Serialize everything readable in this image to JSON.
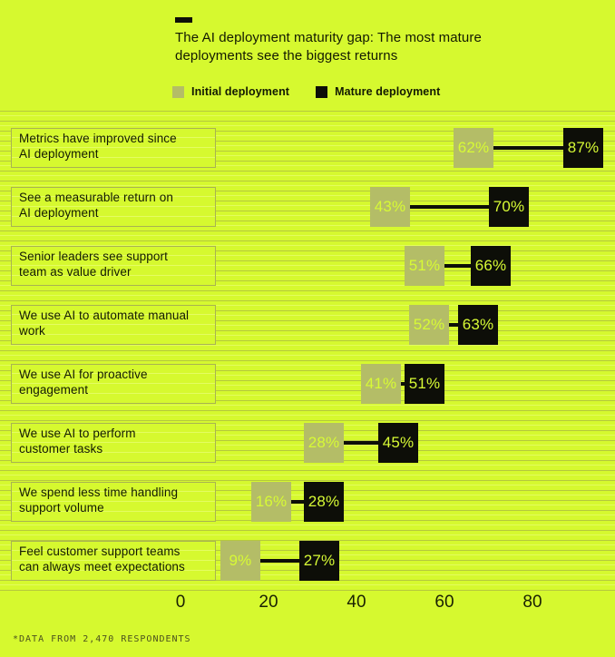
{
  "header": {
    "title": "The AI deployment maturity gap: The most mature\ndeployments see the biggest returns"
  },
  "legend": [
    {
      "label": "Initial deployment",
      "color": "#b4bd67"
    },
    {
      "label": "Mature deployment",
      "color": "#0d0e08"
    }
  ],
  "chart_data": {
    "type": "dumbbell",
    "title": "The AI deployment maturity gap: The most mature deployments see the biggest returns",
    "categories": [
      "Metrics have improved since\nAI deployment",
      "See a measurable return on\nAI deployment",
      "Senior leaders see support\nteam as value driver",
      "We use AI to automate manual\nwork",
      "We use AI for proactive\nengagement",
      "We use AI to perform\ncustomer tasks",
      "We spend less time handling\nsupport volume",
      "Feel customer support teams\ncan always meet expectations"
    ],
    "series": [
      {
        "name": "Initial deployment",
        "values": [
          62,
          43,
          51,
          52,
          41,
          28,
          16,
          9
        ],
        "labels": [
          "62%",
          "43%",
          "51%",
          "52%",
          "41%",
          "28%",
          "16%",
          "9%"
        ]
      },
      {
        "name": "Mature deployment",
        "values": [
          87,
          70,
          66,
          63,
          51,
          45,
          28,
          27
        ],
        "labels": [
          "87%",
          "70%",
          "66%",
          "63%",
          "51%",
          "45%",
          "28%",
          "27%"
        ]
      }
    ],
    "x_ticks": [
      0,
      20,
      40,
      60,
      80
    ],
    "xlim": [
      0,
      98
    ],
    "grid": "horizontal-ruled-lines",
    "legend_position": "top",
    "colors": {
      "background": "#d6f92f",
      "grid_line": "#b5c83e",
      "initial": "#b4bd67",
      "mature": "#0d0e08",
      "value_text": "#d7fa35",
      "connector": "#0d0e08"
    }
  },
  "footer": {
    "note": "*DATA FROM 2,470 RESPONDENTS"
  }
}
